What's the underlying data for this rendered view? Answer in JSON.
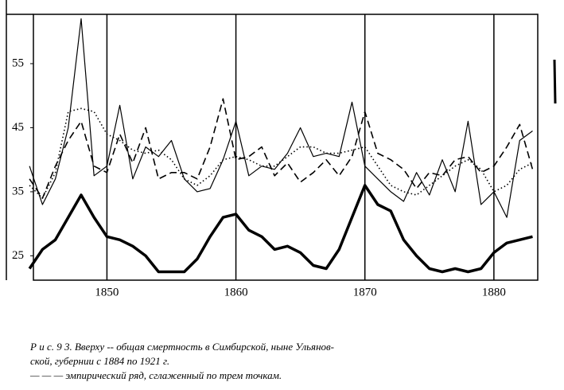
{
  "chart_data": {
    "type": "line",
    "x": [
      1844,
      1845,
      1846,
      1847,
      1848,
      1849,
      1850,
      1851,
      1852,
      1853,
      1854,
      1855,
      1856,
      1857,
      1858,
      1859,
      1860,
      1861,
      1862,
      1863,
      1864,
      1865,
      1866,
      1867,
      1868,
      1869,
      1870,
      1871,
      1872,
      1873,
      1874,
      1875,
      1876,
      1877,
      1878,
      1879,
      1880,
      1881,
      1882,
      1883
    ],
    "xlim": [
      1844.3,
      1883.4
    ],
    "xticks": [
      1850,
      1860,
      1870,
      1880
    ],
    "ylim": [
      21.2,
      62.7
    ],
    "yticks": [
      25,
      35,
      45,
      55
    ],
    "xgrid": true,
    "series": [
      {
        "color": "#000000",
        "dash": "solid",
        "width": 1.2,
        "values": [
          39,
          33,
          37,
          45,
          62,
          37.5,
          39,
          48.5,
          37,
          42,
          40.5,
          43,
          37,
          35,
          35.5,
          40,
          46,
          37.5,
          39,
          38.5,
          41,
          45,
          40.5,
          41,
          40.5,
          49,
          39,
          37,
          35,
          33.5,
          38,
          34.5,
          40,
          35,
          46,
          33,
          35,
          31,
          43,
          44.5
        ]
      },
      {
        "color": "#000000",
        "dash": "dashed",
        "width": 1.6,
        "values": [
          37,
          34,
          39,
          43,
          46,
          39,
          38,
          44,
          39.5,
          45,
          37,
          38,
          38,
          37,
          42,
          49.5,
          40,
          40.5,
          42,
          37.5,
          39.5,
          36.5,
          38,
          40,
          37.5,
          40.5,
          47.5,
          41,
          40,
          38.5,
          35.5,
          38,
          37.5,
          40,
          40.5,
          38,
          39,
          42,
          45.5,
          38.5
        ]
      },
      {
        "color": "#000000",
        "dash": "dotted",
        "width": 1.6,
        "values": [
          36,
          34,
          38,
          47.5,
          48,
          47.5,
          44,
          43,
          41.5,
          41,
          41.5,
          40,
          37,
          36,
          37.5,
          40,
          40.5,
          40,
          39,
          39,
          40.5,
          42,
          42,
          41,
          41,
          41.5,
          42,
          39,
          36,
          35,
          34.5,
          36,
          37.5,
          39,
          40,
          38.5,
          35,
          36,
          38.5,
          39.5
        ]
      },
      {
        "color": "#000000",
        "dash": "solid",
        "width": 3.5,
        "values": [
          23,
          26,
          27.5,
          31,
          34.5,
          31,
          28,
          27.5,
          26.5,
          25,
          22.5,
          22.5,
          22.5,
          24.5,
          28,
          31,
          31.5,
          29,
          28,
          26,
          26.5,
          25.5,
          23.5,
          23,
          26,
          31,
          36,
          33,
          32,
          27.5,
          25,
          23,
          22.5,
          23,
          22.5,
          23,
          25.5,
          27,
          27.5,
          28
        ]
      }
    ],
    "caption": [
      "Р и с. 9 3. Вверху -- общая смертность в Симбирской, ныне Ульянов-",
      "ской, губернии с 1884 по 1921 г.",
      "— — — эмпирический ряд, сглаженный по трем точкам."
    ]
  }
}
